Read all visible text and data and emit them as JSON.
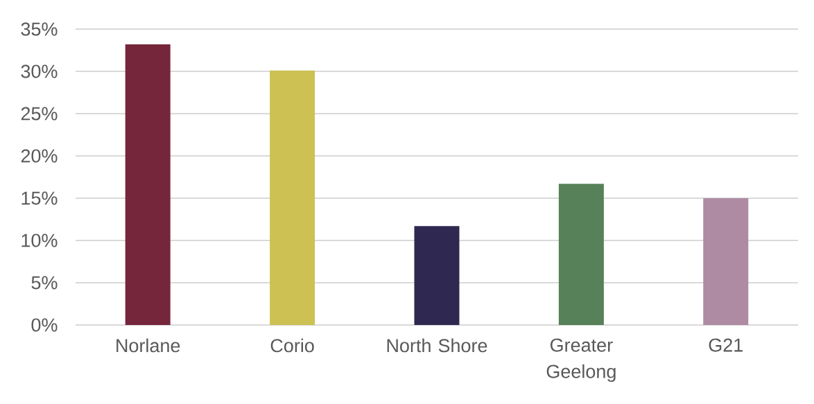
{
  "chart_data": {
    "type": "bar",
    "categories": [
      "Norlane",
      "Corio",
      "North Shore",
      "Greater Geelong",
      "G21"
    ],
    "values": [
      33.2,
      30.1,
      11.7,
      16.7,
      15.0
    ],
    "colors": [
      "#76263a",
      "#ccc152",
      "#2f2951",
      "#578158",
      "#ae8ba3"
    ],
    "ylim": [
      0,
      35
    ],
    "yticks": [
      {
        "value": 0,
        "label": "0%"
      },
      {
        "value": 5,
        "label": "5%"
      },
      {
        "value": 10,
        "label": "10%"
      },
      {
        "value": 15,
        "label": "15%"
      },
      {
        "value": 20,
        "label": "20%"
      },
      {
        "value": 25,
        "label": "25%"
      },
      {
        "value": 30,
        "label": "30%"
      },
      {
        "value": 35,
        "label": "35%"
      }
    ],
    "grid": "y"
  }
}
